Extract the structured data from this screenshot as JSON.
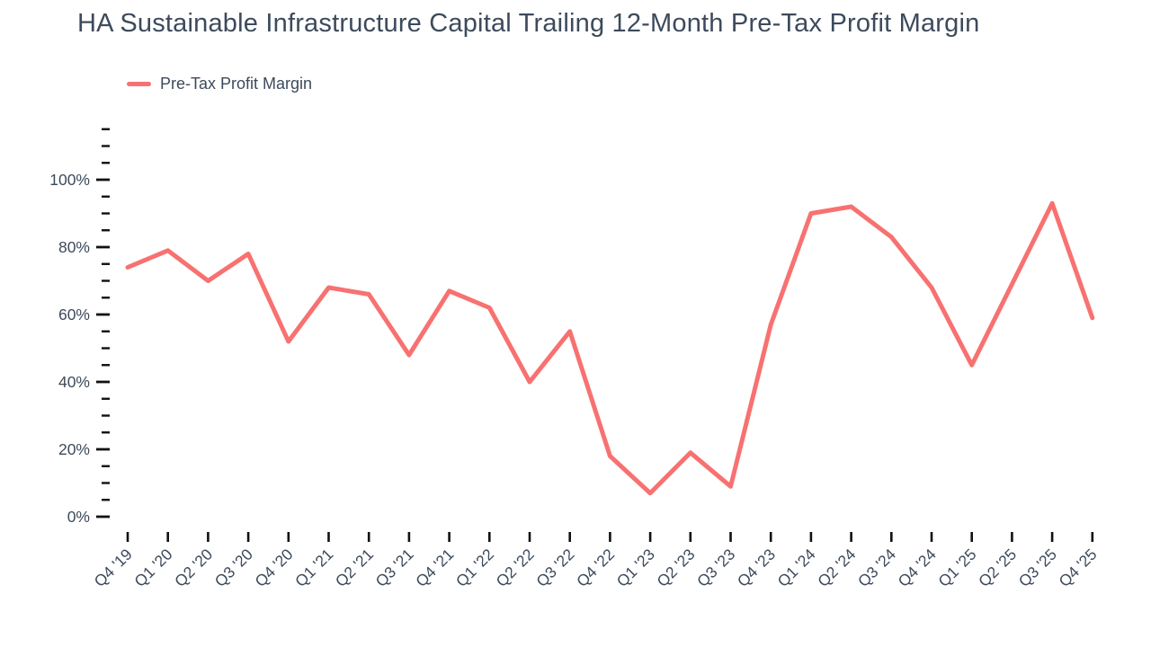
{
  "page": {
    "title": "HA Sustainable Infrastructure Capital Trailing 12-Month Pre-Tax Profit Margin"
  },
  "legend": {
    "label": "Pre-Tax Profit Margin"
  },
  "colors": {
    "series_line": "#f87171",
    "axis_text": "#3d4a5c",
    "tick_mark": "#111111",
    "background": "#ffffff"
  },
  "chart_data": {
    "type": "line",
    "title": "HA Sustainable Infrastructure Capital Trailing 12-Month Pre-Tax Profit Margin",
    "categories": [
      "Q4 '19",
      "Q1 '20",
      "Q2 '20",
      "Q3 '20",
      "Q4 '20",
      "Q1 '21",
      "Q2 '21",
      "Q3 '21",
      "Q4 '21",
      "Q1 '22",
      "Q2 '22",
      "Q3 '22",
      "Q4 '22",
      "Q1 '23",
      "Q2 '23",
      "Q3 '23",
      "Q4 '23",
      "Q1 '24",
      "Q2 '24",
      "Q3 '24",
      "Q4 '24",
      "Q1 '25",
      "Q2 '25",
      "Q3 '25",
      "Q4 '25"
    ],
    "series": [
      {
        "name": "Pre-Tax Profit Margin",
        "values": [
          74,
          79,
          70,
          78,
          52,
          68,
          66,
          48,
          67,
          62,
          40,
          55,
          18,
          7,
          19,
          9,
          57,
          90,
          92,
          83,
          68,
          45,
          69,
          93,
          59
        ]
      }
    ],
    "xlabel": "",
    "ylabel": "",
    "y_axis": {
      "unit": "%",
      "min": 0,
      "max": 115,
      "major_step": 20,
      "minor_step": 5,
      "tick_labels": [
        "0%",
        "20%",
        "40%",
        "60%",
        "80%",
        "100%"
      ]
    },
    "grid": false,
    "legend_position": "top-left"
  }
}
